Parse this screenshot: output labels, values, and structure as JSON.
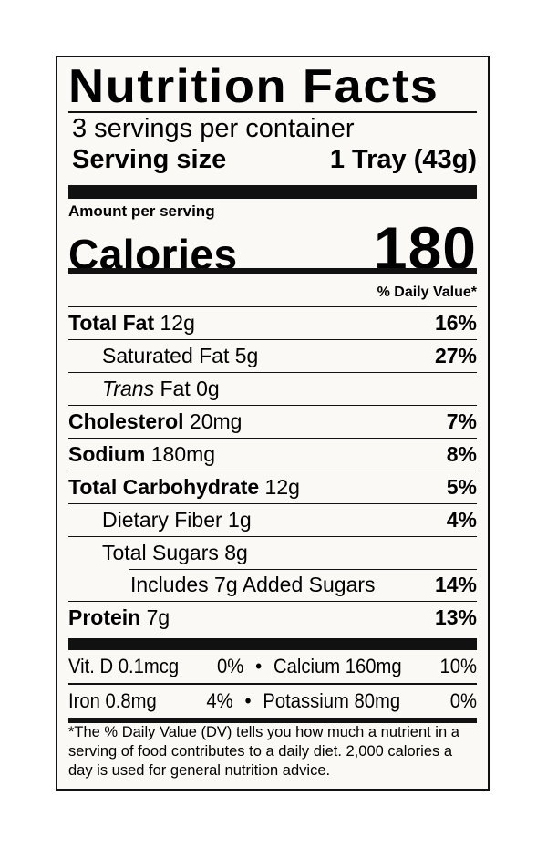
{
  "title": "Nutrition Facts",
  "servings_per_container": "3 servings per container",
  "serving_size": {
    "label": "Serving size",
    "value": "1 Tray (43g)"
  },
  "amount_per_serving": "Amount per serving",
  "calories": {
    "label": "Calories",
    "value": "180"
  },
  "daily_value_header": "% Daily Value*",
  "nutrients": [
    {
      "name": "Total Fat",
      "amount": "12g",
      "dv": "16%"
    },
    {
      "name": "Saturated Fat",
      "amount": "5g",
      "dv": "27%"
    },
    {
      "name_italic": "Trans",
      "name": "Fat",
      "amount": "0g",
      "dv": ""
    },
    {
      "name": "Cholesterol",
      "amount": "20mg",
      "dv": "7%"
    },
    {
      "name": "Sodium",
      "amount": "180mg",
      "dv": "8%"
    },
    {
      "name": "Total Carbohydrate",
      "amount": "12g",
      "dv": "5%"
    },
    {
      "name": "Dietary Fiber",
      "amount": "1g",
      "dv": "4%"
    },
    {
      "name": "Total Sugars",
      "amount": "8g",
      "dv": ""
    },
    {
      "name": "Includes 7g Added Sugars",
      "amount": "",
      "dv": "14%"
    },
    {
      "name": "Protein",
      "amount": "7g",
      "dv": "13%"
    }
  ],
  "vitamins": [
    {
      "left": {
        "name": "Vit. D 0.1mcg",
        "dv": "0%"
      },
      "right": {
        "name": "Calcium 160mg",
        "dv": "10%"
      }
    },
    {
      "left": {
        "name": "Iron 0.8mg",
        "dv": "4%"
      },
      "right": {
        "name": "Potassium 80mg",
        "dv": "0%"
      }
    }
  ],
  "bullet": "•",
  "footnote": "*The % Daily Value (DV) tells you how much a nutrient in a serving of food contributes to a daily diet. 2,000 calories a day is used for general nutrition advice."
}
